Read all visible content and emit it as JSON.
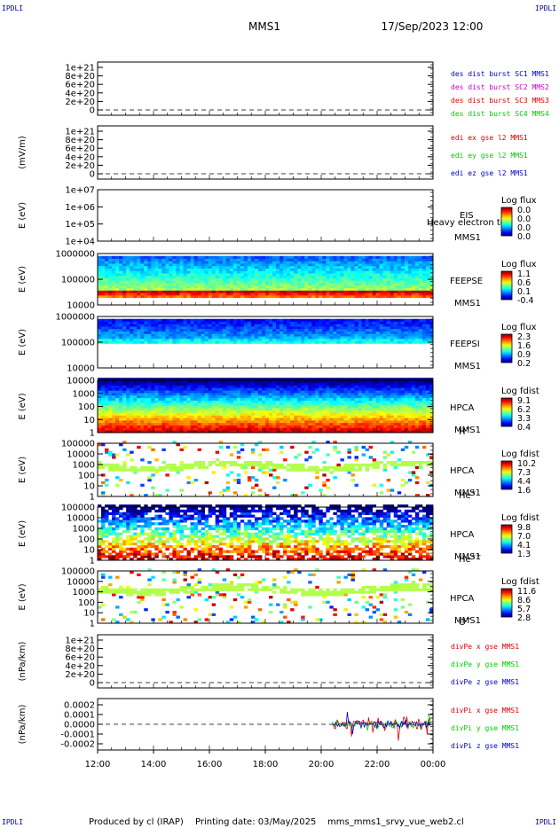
{
  "header": {
    "corner_label": "IPDLI",
    "title": "MMS1",
    "date": "17/Sep/2023 12:00"
  },
  "footer": {
    "produced": "Produced by cl (IRAP)",
    "printing": "Printing date: 03/May/2025",
    "script": "mms_mms1_srvy_vue_web2.cl"
  },
  "colors": {
    "red": "#dd0000",
    "green": "#00cc00",
    "blue": "#0000cc",
    "magenta": "#cc00cc"
  },
  "chart_data": {
    "type": "heatmap",
    "x_ticks": [
      "12:00",
      "14:00",
      "16:00",
      "18:00",
      "20:00",
      "22:00",
      "00:00"
    ],
    "x_range_hours": [
      12,
      24
    ],
    "panels": [
      {
        "id": "des",
        "type": "line",
        "ylabel": "",
        "yticks": [
          "1e+21",
          "8e+20",
          "6e+20",
          "4e+20",
          "2e+20",
          "0"
        ],
        "dashed_zero": true,
        "legend": [
          {
            "text": "des dist burst SC1 MMS1",
            "color": "#0000cc"
          },
          {
            "text": "des dist burst SC2 MMS2",
            "color": "#cc00cc"
          },
          {
            "text": "des dist burst SC3 MMS3",
            "color": "#dd0000"
          },
          {
            "text": "des dist burst SC4 MMS4",
            "color": "#00cc00"
          }
        ]
      },
      {
        "id": "edi",
        "type": "line",
        "ylabel": "(mV/m)",
        "yticks": [
          "1e+21",
          "8e+20",
          "6e+20",
          "4e+20",
          "2e+20",
          "0"
        ],
        "dashed_zero": true,
        "legend": [
          {
            "text": "edi ex gse l2 MMS1",
            "color": "#dd0000"
          },
          {
            "text": "edi ey gse l2 MMS1",
            "color": "#00cc00"
          },
          {
            "text": "edi ez gse l2 MMS1",
            "color": "#0000cc"
          }
        ]
      },
      {
        "id": "eis",
        "type": "spectrogram",
        "ylabel": "E (eV)",
        "yticks": [
          "1e+07",
          "1e+06",
          "1e+05",
          "1e+04"
        ],
        "right_labels": [
          "EIS",
          "MMS1"
        ],
        "overlay_label": "Heavy electron to",
        "colorbar": {
          "title": "Log flux",
          "ticks": [
            "0.0",
            "0.0",
            "0.0",
            "0.0"
          ]
        }
      },
      {
        "id": "feepse",
        "type": "spectrogram",
        "ylabel": "E (eV)",
        "yticks": [
          "1000000",
          "100000",
          "10000"
        ],
        "right_labels": [
          "FEEPSE",
          "MMS1"
        ],
        "colorbar": {
          "title": "Log flux",
          "ticks": [
            "1.1",
            "0.6",
            "0.1",
            "-0.4"
          ]
        }
      },
      {
        "id": "feepsi",
        "type": "spectrogram",
        "ylabel": "E (eV)",
        "yticks": [
          "1000000",
          "100000",
          "10000"
        ],
        "right_labels": [
          "FEEPSI",
          "MMS1"
        ],
        "colorbar": {
          "title": "Log flux",
          "ticks": [
            "2.3",
            "1.6",
            "0.9",
            "0.2"
          ]
        }
      },
      {
        "id": "hpca_h",
        "type": "spectrogram",
        "ylabel": "E (eV)",
        "yticks": [
          "10000",
          "1000",
          "100",
          "10",
          "1"
        ],
        "right_labels": [
          "HPCA",
          "MMS1"
        ],
        "species": "H",
        "charge": "+",
        "colorbar": {
          "title": "Log fdist",
          "ticks": [
            "9.1",
            "6.2",
            "3.3",
            "0.4"
          ]
        }
      },
      {
        "id": "hpca_he1",
        "type": "spectrogram",
        "ylabel": "E (eV)",
        "yticks": [
          "100000",
          "10000",
          "1000",
          "100",
          "10",
          "1"
        ],
        "right_labels": [
          "HPCA",
          "MMS1"
        ],
        "species": "He",
        "charge": "+",
        "colorbar": {
          "title": "Log fdist",
          "ticks": [
            "10.2",
            "7.3",
            "4.4",
            "1.6"
          ]
        }
      },
      {
        "id": "hpca_he2",
        "type": "spectrogram",
        "ylabel": "E (eV)",
        "yticks": [
          "100000",
          "10000",
          "1000",
          "100",
          "10",
          "1"
        ],
        "right_labels": [
          "HPCA",
          "MMS1"
        ],
        "species": "He",
        "charge": "++",
        "colorbar": {
          "title": "Log fdist",
          "ticks": [
            "9.8",
            "7.0",
            "4.1",
            "1.3"
          ]
        }
      },
      {
        "id": "hpca_o",
        "type": "spectrogram",
        "ylabel": "E (eV)",
        "yticks": [
          "100000",
          "10000",
          "1000",
          "100",
          "10",
          "1"
        ],
        "right_labels": [
          "HPCA",
          "MMS1"
        ],
        "species": "O",
        "charge": "+",
        "colorbar": {
          "title": "Log fdist",
          "ticks": [
            "11.6",
            "8.6",
            "5.7",
            "2.8"
          ]
        }
      },
      {
        "id": "dpe",
        "type": "line",
        "ylabel": "(nPa/km)",
        "yticks": [
          "1e+21",
          "8e+20",
          "6e+20",
          "4e+20",
          "2e+20",
          "0"
        ],
        "dashed_zero": true,
        "legend": [
          {
            "text": "divPe x gse MMS1",
            "color": "#dd0000"
          },
          {
            "text": "divPe y gse MMS1",
            "color": "#00cc00"
          },
          {
            "text": "divPe z gse MMS1",
            "color": "#0000cc"
          }
        ]
      },
      {
        "id": "dpi",
        "type": "line",
        "ylabel": "(nPa/km)",
        "yticks": [
          "0.0002",
          "0.0001",
          "0.0000",
          "-0.0001",
          "-0.0002"
        ],
        "dashed_zero": true,
        "data_start_hour": 20.4,
        "legend": [
          {
            "text": "divPi x gse MMS1",
            "color": "#dd0000"
          },
          {
            "text": "divPi y gse MMS1",
            "color": "#00cc00"
          },
          {
            "text": "divPi z gse MMS1",
            "color": "#0000cc"
          }
        ]
      }
    ]
  }
}
